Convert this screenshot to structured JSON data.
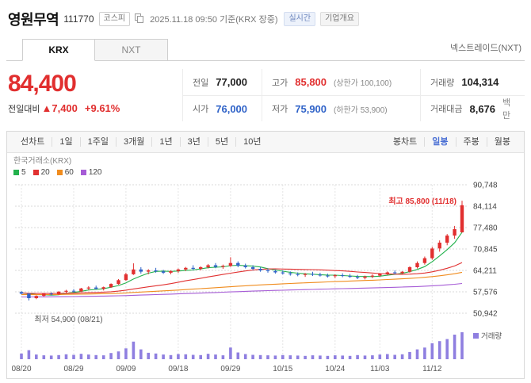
{
  "colors": {
    "up": "#e12f2f",
    "down": "#3063c8",
    "volume": "#8f7fe0",
    "accent_blue": "#4a6fd4"
  },
  "header": {
    "stock_name": "영원무역",
    "stock_code": "111770",
    "market_badge": "코스피",
    "quote_time": "2025.11.18 09:50 기준(KRX 장중)",
    "realtime_badge": "실시간",
    "company_overview_badge": "기업개요"
  },
  "tabs": {
    "krx": "KRX",
    "nxt": "NXT",
    "nxt_link": "넥스트레이드(NXT)"
  },
  "price": {
    "current": "84,400",
    "change_label": "전일대비",
    "change": "▲7,400",
    "change_percent": "+9.61%",
    "table": {
      "prev_label": "전일",
      "prev": "77,000",
      "high_label": "고가",
      "high": "85,800",
      "high_limit": "(상한가 100,100)",
      "volume_label": "거래량",
      "volume": "104,314",
      "open_label": "시가",
      "open": "76,000",
      "low_label": "저가",
      "low": "75,900",
      "low_limit": "(하한가 53,900)",
      "amount_label": "거래대금",
      "amount": "8,676",
      "amount_unit": "백만"
    }
  },
  "chart_controls": {
    "left": [
      "선차트",
      "1일",
      "1주일",
      "3개월",
      "1년",
      "3년",
      "5년",
      "10년"
    ],
    "right_label": "봉차트",
    "right": [
      "일봉",
      "주봉",
      "월봉"
    ],
    "active": "일봉"
  },
  "chart": {
    "source": "한국거래소(KRX)",
    "volume_legend": "거래량"
  },
  "chart_data": {
    "type": "candlestick",
    "y_ticks": [
      90748,
      84114,
      77480,
      70845,
      64211,
      57576,
      50942
    ],
    "x_tick_labels": [
      "08/20",
      "08/29",
      "09/09",
      "09/18",
      "09/29",
      "10/15",
      "10/24",
      "11/03",
      "11/12"
    ],
    "x_tick_indices": [
      0,
      7,
      14,
      21,
      28,
      35,
      42,
      48,
      55
    ],
    "ma": [
      {
        "label": "5",
        "window": 5,
        "color": "#23b14d"
      },
      {
        "label": "20",
        "window": 20,
        "color": "#e13131"
      },
      {
        "label": "60",
        "window": 60,
        "color": "#f08c1e"
      },
      {
        "label": "120",
        "window": 120,
        "color": "#a65cd6"
      }
    ],
    "ma_seed": {
      "start": 54500,
      "end": 57400,
      "count": 120
    },
    "annotations": {
      "high": {
        "text": "최고 85,800 (11/18)",
        "color": "#e12f2f"
      },
      "low": {
        "text": "최저 54,900 (08/21)",
        "color": "#555555"
      }
    },
    "candle_format": [
      "open",
      "high",
      "low",
      "close",
      "volume"
    ],
    "candles": [
      [
        57500,
        57800,
        56800,
        57000,
        22000
      ],
      [
        57000,
        57200,
        54900,
        55600,
        35000
      ],
      [
        55600,
        56500,
        55300,
        56300,
        18000
      ],
      [
        56300,
        57200,
        56000,
        57000,
        15000
      ],
      [
        57000,
        57400,
        56500,
        56800,
        14000
      ],
      [
        56800,
        57800,
        56600,
        57600,
        16000
      ],
      [
        57600,
        58200,
        57100,
        57900,
        19000
      ],
      [
        57900,
        58400,
        57300,
        57700,
        17000
      ],
      [
        57700,
        58800,
        57500,
        58600,
        21000
      ],
      [
        58600,
        59300,
        58100,
        58900,
        18000
      ],
      [
        58900,
        59500,
        58300,
        58500,
        16000
      ],
      [
        58500,
        59200,
        58000,
        59000,
        15000
      ],
      [
        59000,
        60200,
        58800,
        60000,
        24000
      ],
      [
        60000,
        61500,
        59800,
        61200,
        30000
      ],
      [
        61200,
        63500,
        61000,
        63000,
        42000
      ],
      [
        63000,
        66400,
        62800,
        64500,
        68000
      ],
      [
        64500,
        65200,
        63200,
        63800,
        38000
      ],
      [
        63800,
        64600,
        63000,
        64200,
        25000
      ],
      [
        64200,
        65000,
        63500,
        63900,
        22000
      ],
      [
        63900,
        64400,
        63100,
        63500,
        18000
      ],
      [
        63500,
        64200,
        63000,
        64000,
        16000
      ],
      [
        64000,
        64800,
        63400,
        64500,
        20000
      ],
      [
        64500,
        65300,
        64000,
        65000,
        19000
      ],
      [
        65000,
        65800,
        64300,
        64700,
        17000
      ],
      [
        64700,
        65500,
        64200,
        65200,
        16000
      ],
      [
        65200,
        66200,
        64800,
        65800,
        21000
      ],
      [
        65800,
        66500,
        64900,
        65300,
        18000
      ],
      [
        65300,
        66000,
        64700,
        65600,
        15000
      ],
      [
        65600,
        68300,
        65300,
        66500,
        45000
      ],
      [
        66500,
        67000,
        65200,
        65700,
        26000
      ],
      [
        65700,
        66300,
        64800,
        65200,
        20000
      ],
      [
        65200,
        65800,
        64300,
        64700,
        17000
      ],
      [
        64700,
        65200,
        63800,
        64200,
        16000
      ],
      [
        64200,
        64800,
        63500,
        64000,
        15000
      ],
      [
        64000,
        64500,
        63200,
        63600,
        14000
      ],
      [
        63600,
        64200,
        62900,
        63300,
        16000
      ],
      [
        63300,
        63900,
        62600,
        63000,
        15000
      ],
      [
        63000,
        63600,
        62400,
        62800,
        14000
      ],
      [
        62800,
        63400,
        62200,
        63100,
        13000
      ],
      [
        63100,
        63800,
        62500,
        62900,
        15000
      ],
      [
        62900,
        63500,
        62300,
        62600,
        14000
      ],
      [
        62600,
        63200,
        62000,
        62400,
        13000
      ],
      [
        62400,
        63000,
        61800,
        62700,
        15000
      ],
      [
        62700,
        63300,
        62100,
        62500,
        14000
      ],
      [
        62500,
        63100,
        61900,
        62200,
        13000
      ],
      [
        62200,
        62800,
        61500,
        61900,
        16000
      ],
      [
        61900,
        62600,
        61400,
        62300,
        14000
      ],
      [
        62300,
        63000,
        61800,
        62600,
        15000
      ],
      [
        62600,
        63400,
        62200,
        63100,
        18000
      ],
      [
        63100,
        63900,
        62700,
        63600,
        20000
      ],
      [
        63600,
        64200,
        63000,
        63400,
        17000
      ],
      [
        63400,
        64000,
        62900,
        63800,
        19000
      ],
      [
        63800,
        65500,
        63500,
        65200,
        28000
      ],
      [
        65200,
        67000,
        64800,
        66500,
        38000
      ],
      [
        66500,
        68500,
        66000,
        68000,
        45000
      ],
      [
        68000,
        71500,
        67500,
        71000,
        62000
      ],
      [
        71000,
        73500,
        70000,
        72800,
        70000
      ],
      [
        72800,
        75500,
        72000,
        75000,
        78000
      ],
      [
        75000,
        78000,
        74000,
        77000,
        95000
      ],
      [
        76000,
        85800,
        75900,
        84400,
        104314
      ]
    ]
  }
}
